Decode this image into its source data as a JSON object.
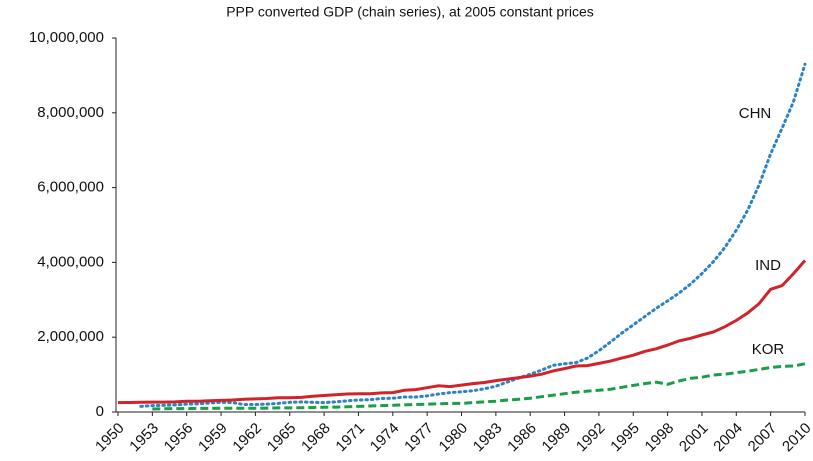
{
  "chart_data": {
    "type": "line",
    "title": "PPP converted GDP (chain series), at 2005 constant prices",
    "x": [
      1950,
      1951,
      1952,
      1953,
      1954,
      1955,
      1956,
      1957,
      1958,
      1959,
      1960,
      1961,
      1962,
      1963,
      1964,
      1965,
      1966,
      1967,
      1968,
      1969,
      1970,
      1971,
      1972,
      1973,
      1974,
      1975,
      1976,
      1977,
      1978,
      1979,
      1980,
      1981,
      1982,
      1983,
      1984,
      1985,
      1986,
      1987,
      1988,
      1989,
      1990,
      1991,
      1992,
      1993,
      1994,
      1995,
      1996,
      1997,
      1998,
      1999,
      2000,
      2001,
      2002,
      2003,
      2004,
      2005,
      2006,
      2007,
      2008,
      2009,
      2010
    ],
    "series": [
      {
        "name": "CHN",
        "color": "#2b83c6",
        "dash": "dotted",
        "values": [
          null,
          null,
          150000,
          170000,
          180000,
          190000,
          210000,
          220000,
          240000,
          260000,
          250000,
          200000,
          200000,
          210000,
          230000,
          260000,
          270000,
          260000,
          250000,
          270000,
          300000,
          320000,
          330000,
          360000,
          370000,
          400000,
          400000,
          430000,
          480000,
          520000,
          540000,
          570000,
          620000,
          690000,
          800000,
          910000,
          1010000,
          1120000,
          1250000,
          1290000,
          1320000,
          1440000,
          1640000,
          1870000,
          2110000,
          2330000,
          2550000,
          2770000,
          2970000,
          3180000,
          3420000,
          3700000,
          4020000,
          4400000,
          4860000,
          5400000,
          6080000,
          6900000,
          7590000,
          8300000,
          9300000
        ]
      },
      {
        "name": "IND",
        "color": "#d0232a",
        "dash": "solid",
        "values": [
          250000,
          255000,
          260000,
          265000,
          265000,
          270000,
          290000,
          290000,
          300000,
          310000,
          320000,
          340000,
          350000,
          360000,
          380000,
          380000,
          390000,
          420000,
          440000,
          460000,
          480000,
          490000,
          490000,
          510000,
          520000,
          580000,
          600000,
          650000,
          700000,
          680000,
          720000,
          760000,
          790000,
          840000,
          880000,
          920000,
          960000,
          1010000,
          1100000,
          1160000,
          1230000,
          1240000,
          1300000,
          1360000,
          1440000,
          1520000,
          1620000,
          1690000,
          1790000,
          1900000,
          1970000,
          2060000,
          2140000,
          2280000,
          2450000,
          2650000,
          2900000,
          3280000,
          3380000,
          3700000,
          4050000
        ]
      },
      {
        "name": "KOR",
        "color": "#1a9e48",
        "dash": "dashed",
        "values": [
          null,
          null,
          null,
          80000,
          85000,
          90000,
          90000,
          95000,
          95000,
          100000,
          100000,
          100000,
          100000,
          105000,
          110000,
          110000,
          115000,
          120000,
          125000,
          130000,
          140000,
          150000,
          160000,
          170000,
          180000,
          190000,
          200000,
          210000,
          220000,
          230000,
          230000,
          250000,
          270000,
          290000,
          320000,
          340000,
          370000,
          410000,
          450000,
          490000,
          530000,
          560000,
          580000,
          610000,
          660000,
          710000,
          760000,
          800000,
          740000,
          830000,
          900000,
          930000,
          990000,
          1010000,
          1050000,
          1090000,
          1140000,
          1190000,
          1220000,
          1230000,
          1290000
        ]
      }
    ],
    "xlim": [
      1950,
      2010
    ],
    "xticks": [
      1950,
      1953,
      1956,
      1959,
      1962,
      1965,
      1968,
      1971,
      1974,
      1977,
      1980,
      1983,
      1986,
      1989,
      1992,
      1995,
      1998,
      2001,
      2004,
      2007,
      2010
    ],
    "ylim": [
      0,
      10000000
    ],
    "yticks": [
      0,
      {
        "value": 2000000,
        "label": "2,000,000"
      },
      {
        "value": 4000000,
        "label": "4,000,000"
      },
      {
        "value": 6000000,
        "label": "6,000,000"
      },
      {
        "value": 8000000,
        "label": "8,000,000"
      },
      {
        "value": 10000000,
        "label": "10,000,000"
      }
    ],
    "grid": false
  }
}
